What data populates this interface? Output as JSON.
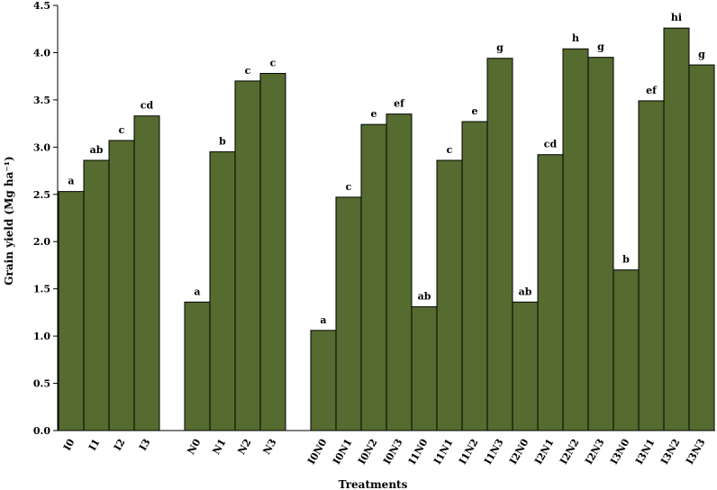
{
  "chart_data": {
    "type": "bar",
    "xlabel": "Treatments",
    "ylabel": "Grain yield (Mg ha⁻¹)",
    "ylim": [
      0,
      4.5
    ],
    "yticks": [
      "0.0",
      "0.5",
      "1.0",
      "1.5",
      "2.0",
      "2.5",
      "3.0",
      "3.5",
      "4.0",
      "4.5"
    ],
    "grid": false,
    "bar_color": "#556b2f",
    "groups": [
      {
        "categories": [
          "I0",
          "I1",
          "I2",
          "I3"
        ],
        "values": [
          2.53,
          2.86,
          3.07,
          3.33
        ],
        "labels": [
          "a",
          "ab",
          "c",
          "cd"
        ]
      },
      {
        "categories": [
          "N0",
          "N1",
          "N2",
          "N3"
        ],
        "values": [
          1.36,
          2.95,
          3.7,
          3.78
        ],
        "labels": [
          "a",
          "b",
          "c",
          "c"
        ]
      },
      {
        "categories": [
          "I0N0",
          "I0N1",
          "I0N2",
          "I0N3",
          "I1N0",
          "I1N1",
          "I1N2",
          "I1N3",
          "I2N0",
          "I2N1",
          "I2N2",
          "I2N3",
          "I3N0",
          "I3N1",
          "I3N2",
          "I3N3"
        ],
        "values": [
          1.06,
          2.47,
          3.24,
          3.35,
          1.31,
          2.86,
          3.27,
          3.94,
          1.36,
          2.92,
          4.04,
          3.95,
          1.7,
          3.49,
          4.26,
          3.87
        ],
        "labels": [
          "a",
          "c",
          "e",
          "ef",
          "ab",
          "c",
          "e",
          "g",
          "ab",
          "cd",
          "h",
          "g",
          "b",
          "ef",
          "hi",
          "g"
        ]
      }
    ]
  }
}
